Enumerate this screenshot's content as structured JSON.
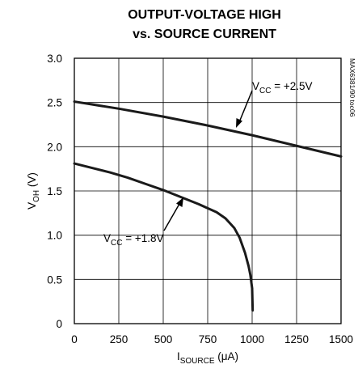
{
  "chart_data": {
    "type": "line",
    "title_lines": [
      "OUTPUT-VOLTAGE HIGH",
      "vs. SOURCE CURRENT"
    ],
    "xlabel": {
      "main": "I",
      "sub": "SOURCE",
      "unit": " (μA)"
    },
    "ylabel": {
      "main": "V",
      "sub": "OH",
      "unit": " (V)"
    },
    "xlim": [
      0,
      1500
    ],
    "ylim": [
      0,
      3.0
    ],
    "xticks": [
      0,
      250,
      500,
      750,
      1000,
      1250,
      1500
    ],
    "yticks": [
      0,
      0.5,
      1.0,
      1.5,
      2.0,
      2.5,
      3.0
    ],
    "xtick_labels": [
      "0",
      "250",
      "500",
      "750",
      "1000",
      "1250",
      "1500"
    ],
    "ytick_labels": [
      "0",
      "0.5",
      "1.0",
      "1.5",
      "2.0",
      "2.5",
      "3.0"
    ],
    "grid": true,
    "series": [
      {
        "x": [
          0,
          250,
          500,
          750,
          1000,
          1250,
          1500
        ],
        "y": [
          2.51,
          2.43,
          2.34,
          2.24,
          2.13,
          2.01,
          1.89
        ]
      },
      {
        "x": [
          0,
          100,
          200,
          300,
          400,
          500,
          600,
          700,
          800,
          850,
          900,
          930,
          960,
          980,
          990,
          1000,
          1003
        ],
        "y": [
          1.81,
          1.76,
          1.71,
          1.65,
          1.58,
          1.51,
          1.43,
          1.35,
          1.26,
          1.19,
          1.08,
          0.97,
          0.8,
          0.65,
          0.55,
          0.4,
          0.15
        ]
      }
    ],
    "annotations": [
      {
        "main": "V",
        "sub": "CC",
        "rest": " = +2.5V"
      },
      {
        "main": "V",
        "sub": "CC",
        "rest": " = +1.8V"
      }
    ],
    "part_code": "MAX6381/90 toc06"
  }
}
